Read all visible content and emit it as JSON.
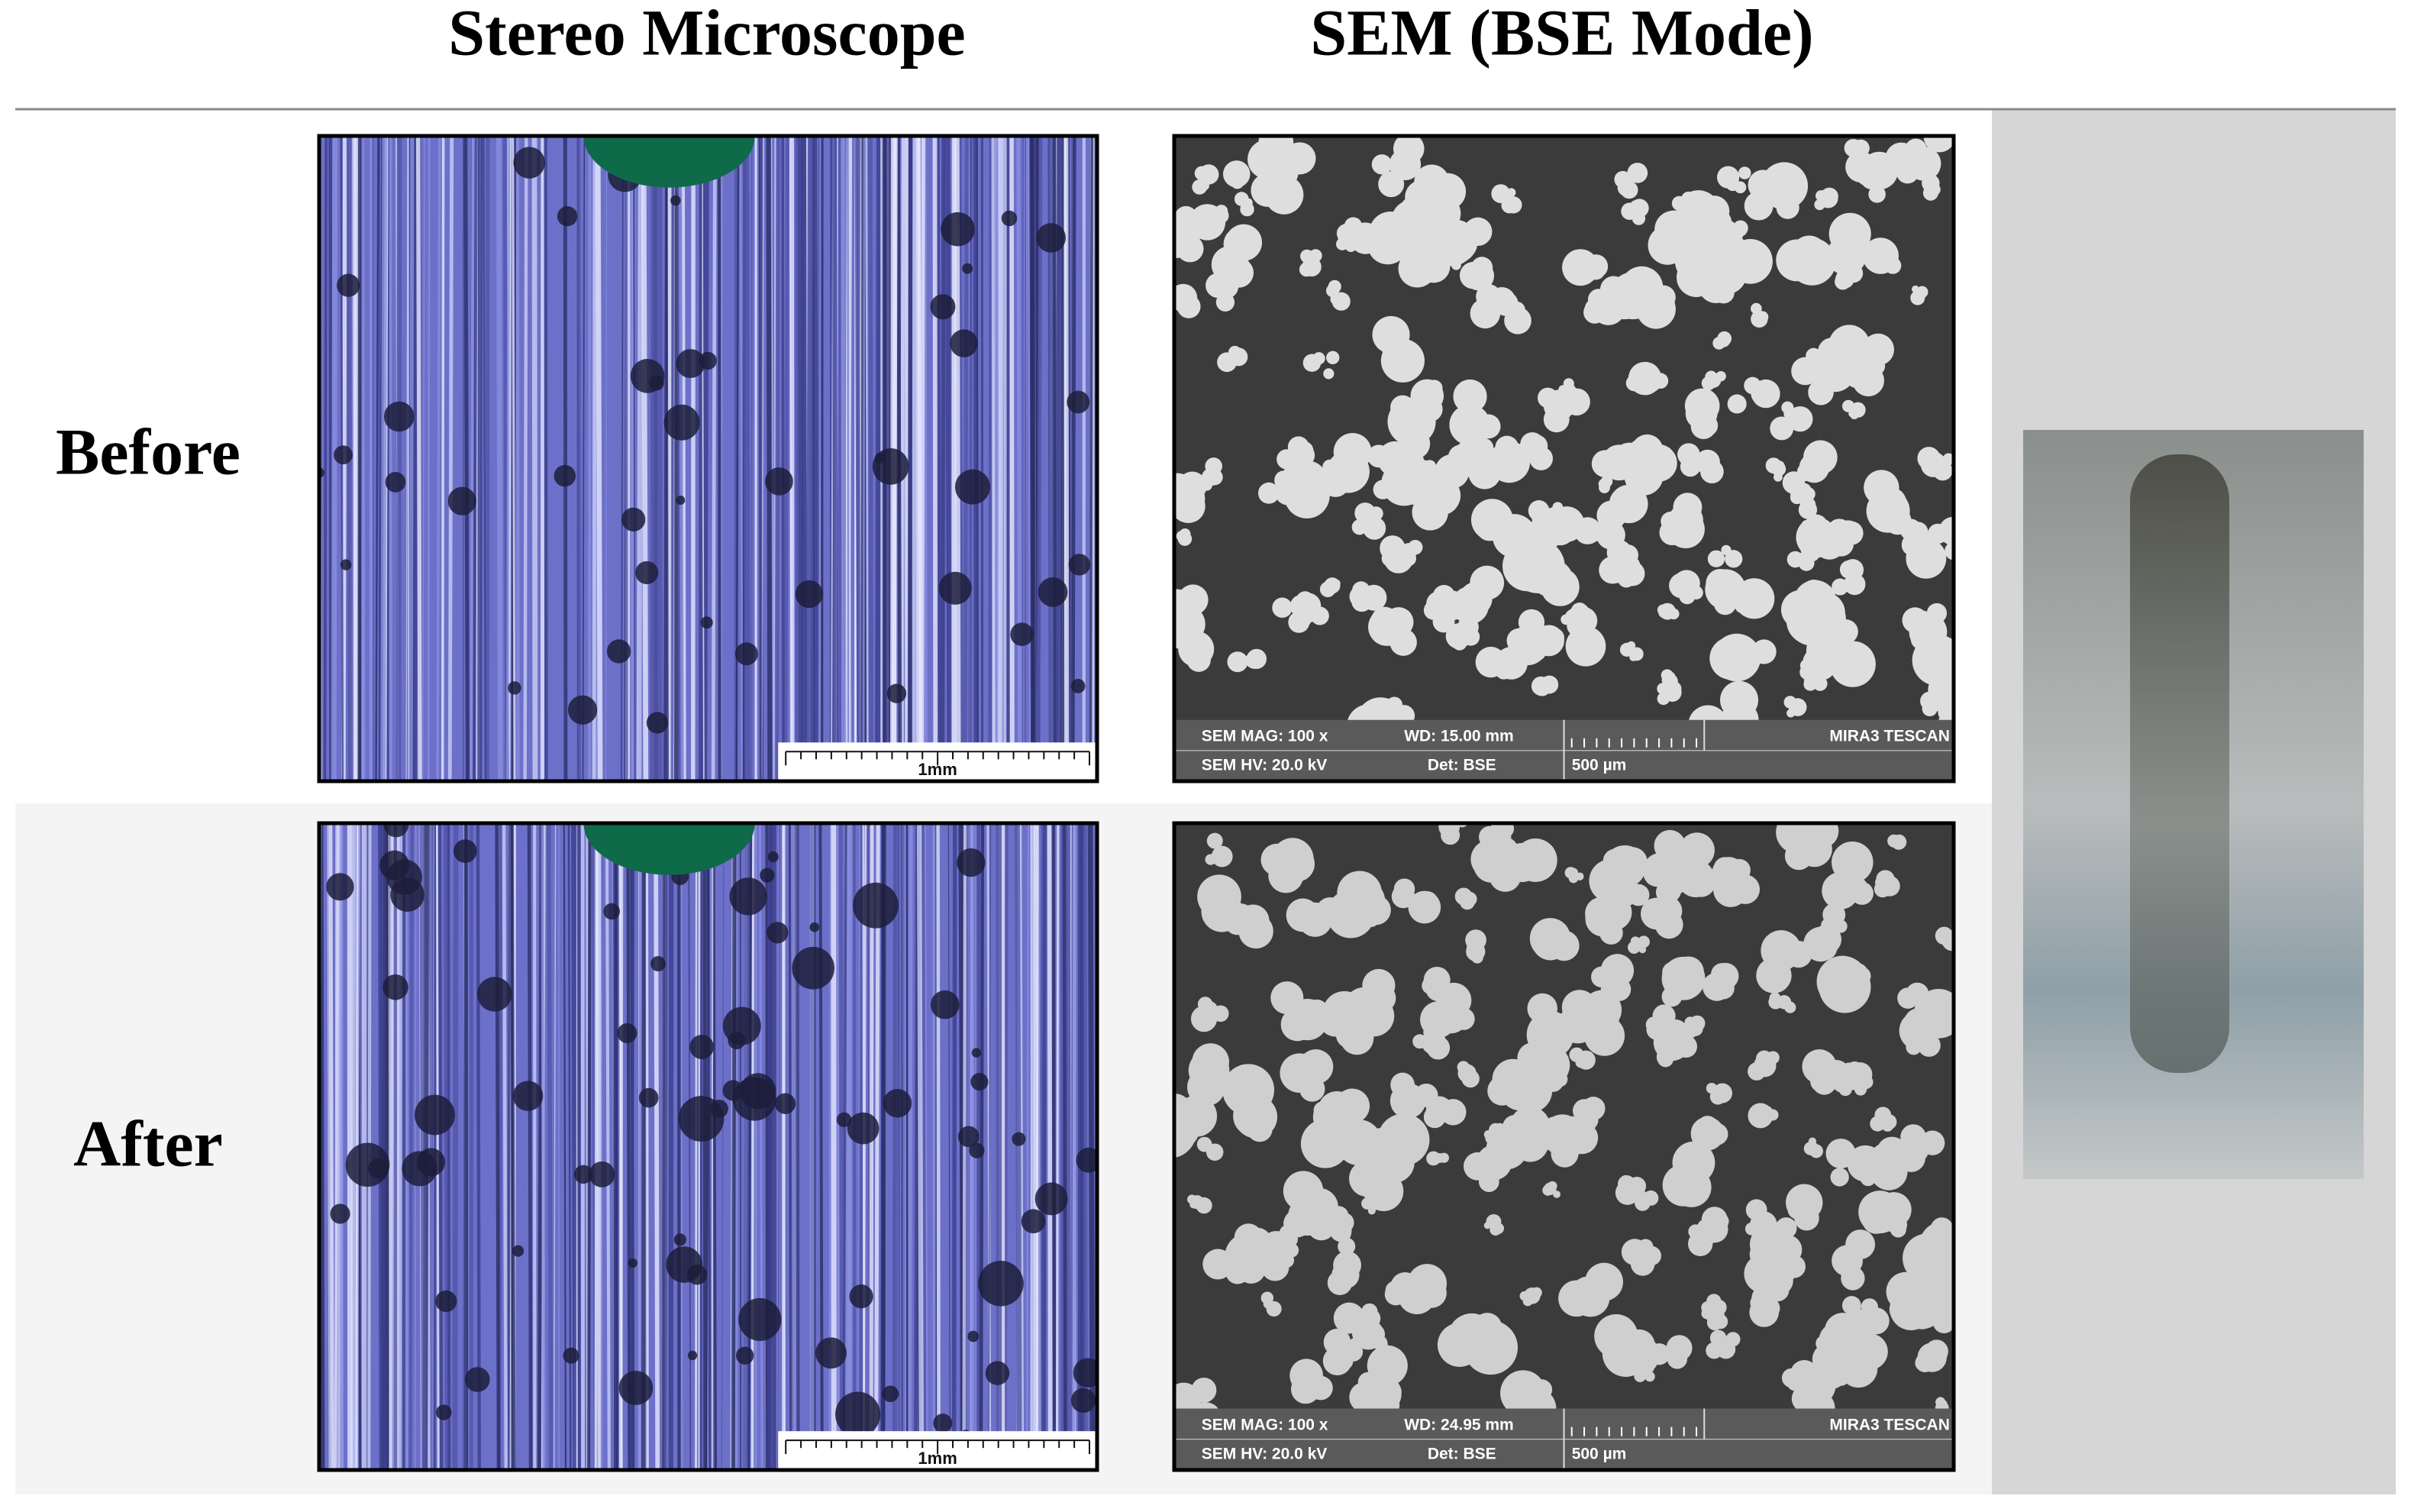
{
  "header": {
    "columns": [
      "Stereo Microscope",
      "SEM (BSE Mode)"
    ]
  },
  "rows": [
    {
      "label": "Before",
      "stereo_scale": "1mm",
      "sem": {
        "mag": "SEM MAG: 100 x",
        "wd": "WD: 15.00 mm",
        "brand": "MIRA3 TESCAN",
        "hv": "SEM HV: 20.0 kV",
        "det": "Det: BSE",
        "scale": "500 µm"
      }
    },
    {
      "label": "After",
      "stereo_scale": "1mm",
      "sem": {
        "mag": "SEM MAG: 100 x",
        "wd": "WD: 24.95 mm",
        "brand": "MIRA3 TESCAN",
        "hv": "SEM HV: 20.0 kV",
        "det": "Det: BSE",
        "scale": "500 µm"
      }
    }
  ]
}
